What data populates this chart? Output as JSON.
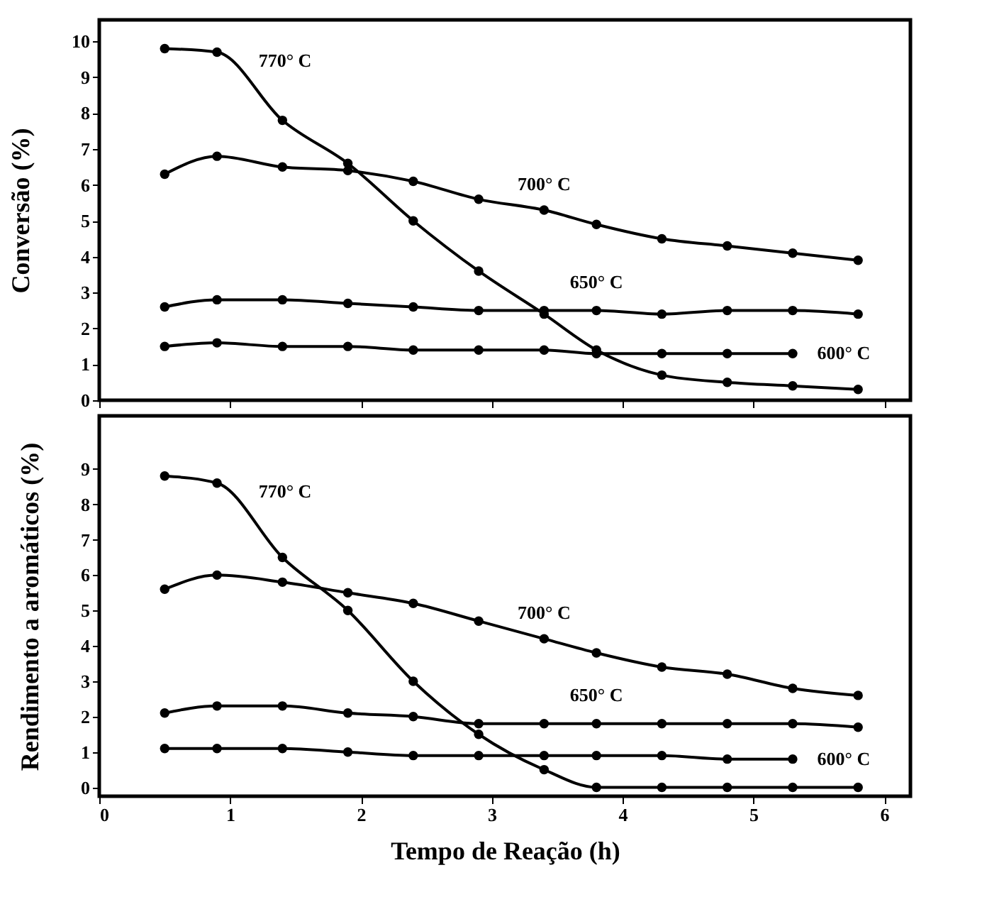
{
  "chart_data": [
    {
      "type": "line",
      "ylabel": "Conversão (%)",
      "x": [
        0.5,
        0.9,
        1.4,
        1.9,
        2.4,
        2.9,
        3.4,
        3.8,
        4.3,
        4.8,
        5.3,
        5.8
      ],
      "xlim": [
        0,
        6.2
      ],
      "xticks": [
        0,
        1,
        2,
        3,
        4,
        5,
        6
      ],
      "ylim": [
        0,
        10.6
      ],
      "yticks": [
        0,
        1,
        2,
        3,
        4,
        5,
        6,
        7,
        8,
        9,
        10
      ],
      "tick_labels": "y",
      "marker": "circle",
      "line_style": "solid",
      "grid": false,
      "legend": false,
      "series": [
        {
          "name": "770° C",
          "color": "#000000",
          "values": [
            9.8,
            9.7,
            7.8,
            6.6,
            5.0,
            3.6,
            2.4,
            1.4,
            0.7,
            0.5,
            0.4,
            0.3
          ]
        },
        {
          "name": "700° C",
          "color": "#000000",
          "values": [
            6.3,
            6.8,
            6.5,
            6.4,
            6.1,
            5.6,
            5.3,
            4.9,
            4.5,
            4.3,
            4.1,
            3.9
          ]
        },
        {
          "name": "650° C",
          "color": "#000000",
          "values": [
            2.6,
            2.8,
            2.8,
            2.7,
            2.6,
            2.5,
            2.5,
            2.5,
            2.4,
            2.5,
            2.5,
            2.4
          ]
        },
        {
          "name": "600° C",
          "color": "#000000",
          "x": [
            0.5,
            0.9,
            1.4,
            1.9,
            2.4,
            2.9,
            3.4,
            3.8,
            4.3,
            4.8,
            5.3
          ],
          "values": [
            1.5,
            1.6,
            1.5,
            1.5,
            1.4,
            1.4,
            1.4,
            1.3,
            1.3,
            1.3,
            1.3
          ]
        }
      ]
    },
    {
      "type": "line",
      "ylabel": "Rendimento a aromáticos (%)",
      "xlabel": "Tempo de Reação (h)",
      "x": [
        0.5,
        0.9,
        1.4,
        1.9,
        2.4,
        2.9,
        3.4,
        3.8,
        4.3,
        4.8,
        5.3,
        5.8
      ],
      "xlim": [
        0,
        6.2
      ],
      "xticks": [
        0,
        1,
        2,
        3,
        4,
        5,
        6
      ],
      "ylim": [
        -0.25,
        10.5
      ],
      "yticks": [
        0,
        1,
        2,
        3,
        4,
        5,
        6,
        7,
        8,
        9
      ],
      "marker": "circle",
      "line_style": "solid",
      "grid": false,
      "legend": false,
      "series": [
        {
          "name": "770° C",
          "color": "#000000",
          "values": [
            8.8,
            8.6,
            6.5,
            5.0,
            3.0,
            1.5,
            0.5,
            0,
            0,
            0,
            0,
            0
          ]
        },
        {
          "name": "700° C",
          "color": "#000000",
          "values": [
            5.6,
            6.0,
            5.8,
            5.5,
            5.2,
            4.7,
            4.2,
            3.8,
            3.4,
            3.2,
            2.8,
            2.6
          ]
        },
        {
          "name": "650° C",
          "color": "#000000",
          "values": [
            2.1,
            2.3,
            2.3,
            2.1,
            2.0,
            1.8,
            1.8,
            1.8,
            1.8,
            1.8,
            1.8,
            1.7
          ]
        },
        {
          "name": "600° C",
          "color": "#000000",
          "x": [
            0.5,
            0.9,
            1.4,
            1.9,
            2.4,
            2.9,
            3.4,
            3.8,
            4.3,
            4.8,
            5.3
          ],
          "values": [
            1.1,
            1.1,
            1.1,
            1.0,
            0.9,
            0.9,
            0.9,
            0.9,
            0.9,
            0.8,
            0.8
          ]
        }
      ]
    }
  ]
}
